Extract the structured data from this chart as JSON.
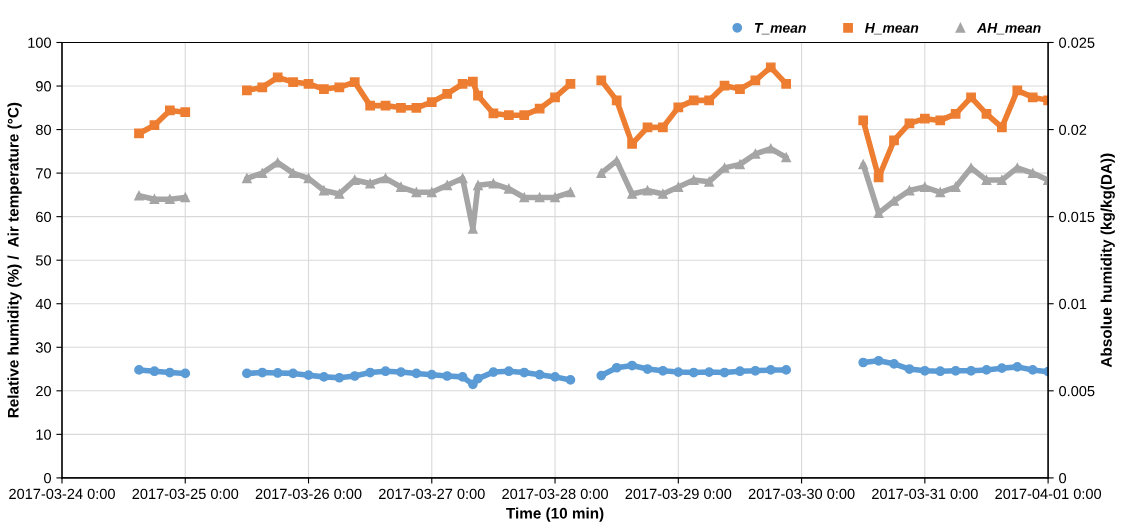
{
  "chart_data": {
    "type": "line",
    "xlabel": "Time (10 min)",
    "ylabel": "Relative humidity (%) /  Air temperature (°C)",
    "y2label": "Absolue humidity (kg/kg(DA))",
    "x": [
      "2017-03-24T15:00",
      "2017-03-24T18:00",
      "2017-03-24T21:00",
      "2017-03-25T00:00",
      "2017-03-25T06:00",
      "2017-03-25T12:00",
      "2017-03-25T15:00",
      "2017-03-25T18:00",
      "2017-03-25T21:00",
      "2017-03-26T00:00",
      "2017-03-26T03:00",
      "2017-03-26T06:00",
      "2017-03-26T09:00",
      "2017-03-26T12:00",
      "2017-03-26T15:00",
      "2017-03-26T18:00",
      "2017-03-26T21:00",
      "2017-03-27T00:00",
      "2017-03-27T03:00",
      "2017-03-27T06:00",
      "2017-03-27T08:00",
      "2017-03-27T09:00",
      "2017-03-27T12:00",
      "2017-03-27T15:00",
      "2017-03-27T18:00",
      "2017-03-27T21:00",
      "2017-03-28T00:00",
      "2017-03-28T03:00",
      "2017-03-28T06:00",
      "2017-03-28T09:00",
      "2017-03-28T12:00",
      "2017-03-28T15:00",
      "2017-03-28T18:00",
      "2017-03-28T21:00",
      "2017-03-29T00:00",
      "2017-03-29T03:00",
      "2017-03-29T06:00",
      "2017-03-29T09:00",
      "2017-03-29T12:00",
      "2017-03-29T15:00",
      "2017-03-29T18:00",
      "2017-03-29T21:00",
      "2017-03-30T03:00",
      "2017-03-30T12:00",
      "2017-03-30T15:00",
      "2017-03-30T18:00",
      "2017-03-30T21:00",
      "2017-03-31T00:00",
      "2017-03-31T03:00",
      "2017-03-31T06:00",
      "2017-03-31T09:00",
      "2017-03-31T12:00",
      "2017-03-31T15:00",
      "2017-03-31T18:00",
      "2017-03-31T21:00",
      "2017-04-01T00:00"
    ],
    "series": [
      {
        "name": "T_mean",
        "color": "#5b9bd5",
        "marker": "circle",
        "values": [
          24.8,
          24.5,
          24.2,
          24.0,
          null,
          24.0,
          24.2,
          24.1,
          24.0,
          23.6,
          23.2,
          23.0,
          23.4,
          24.2,
          24.5,
          24.3,
          24.0,
          23.7,
          23.4,
          23.2,
          21.5,
          22.8,
          24.3,
          24.5,
          24.2,
          23.7,
          23.2,
          22.5,
          null,
          23.5,
          25.3,
          25.8,
          25.0,
          24.6,
          24.3,
          24.2,
          24.3,
          24.2,
          24.5,
          24.6,
          24.8,
          24.8,
          null,
          26.5,
          26.9,
          26.2,
          25.0,
          24.6,
          24.5,
          24.6,
          24.6,
          24.8,
          25.2,
          25.5,
          24.8,
          24.4
        ]
      },
      {
        "name": "H_mean",
        "color": "#ed7d31",
        "marker": "square",
        "values": [
          79.1,
          81,
          84.4,
          84,
          null,
          89,
          89.7,
          92,
          90.9,
          90.5,
          89.3,
          89.7,
          90.9,
          85.5,
          85.5,
          85,
          85,
          86.3,
          88.2,
          90.5,
          91,
          87.8,
          83.7,
          83.3,
          83.3,
          84.8,
          87.4,
          90.5,
          null,
          91.3,
          86.7,
          76.7,
          80.5,
          80.5,
          85.1,
          86.7,
          86.7,
          90.1,
          89.3,
          91.3,
          94.3,
          90.5,
          null,
          82.1,
          69,
          77.5,
          81.4,
          82.5,
          82.1,
          83.6,
          87.4,
          83.6,
          80.5,
          89,
          87.4,
          86.7
        ]
      },
      {
        "name": "AH_mean",
        "color": "#a5a5a5",
        "marker": "triangle",
        "axis": "y2",
        "values": [
          0.0162,
          0.016,
          0.016,
          0.0161,
          null,
          0.0172,
          0.0175,
          0.0181,
          0.0175,
          0.0172,
          0.0165,
          0.0163,
          0.0171,
          0.0169,
          0.0172,
          0.0167,
          0.0164,
          0.0164,
          0.0168,
          0.0172,
          0.0143,
          0.0168,
          0.0169,
          0.0166,
          0.0161,
          0.0161,
          0.0161,
          0.0164,
          null,
          0.0175,
          0.0182,
          0.0163,
          0.0165,
          0.0163,
          0.0167,
          0.0171,
          0.017,
          0.0178,
          0.018,
          0.0186,
          0.0189,
          0.0184,
          null,
          0.018,
          0.0152,
          0.0159,
          0.0165,
          0.0167,
          0.0164,
          0.0167,
          0.0178,
          0.0171,
          0.0171,
          0.0178,
          0.0175,
          0.0171
        ]
      }
    ],
    "xlim": [
      "2017-03-24T00:00",
      "2017-04-01T00:00"
    ],
    "xticks": [
      {
        "value": "2017-03-24T00:00",
        "label": "2017-03-24 0:00"
      },
      {
        "value": "2017-03-25T00:00",
        "label": "2017-03-25 0:00"
      },
      {
        "value": "2017-03-26T00:00",
        "label": "2017-03-26 0:00"
      },
      {
        "value": "2017-03-27T00:00",
        "label": "2017-03-27 0:00"
      },
      {
        "value": "2017-03-28T00:00",
        "label": "2017-03-28 0:00"
      },
      {
        "value": "2017-03-29T00:00",
        "label": "2017-03-29 0:00"
      },
      {
        "value": "2017-03-30T00:00",
        "label": "2017-03-30 0:00"
      },
      {
        "value": "2017-03-31T00:00",
        "label": "2017-03-31 0:00"
      },
      {
        "value": "2017-04-01T00:00",
        "label": "2017-04-01 0:00"
      }
    ],
    "ylim": [
      0,
      100
    ],
    "yticks": [
      0,
      10,
      20,
      30,
      40,
      50,
      60,
      70,
      80,
      90,
      100
    ],
    "y2lim": [
      0,
      0.025
    ],
    "y2ticks": [
      0,
      0.005,
      0.01,
      0.015,
      0.02,
      0.025
    ],
    "grid": true,
    "legend": "top right",
    "line_style": "solid"
  }
}
